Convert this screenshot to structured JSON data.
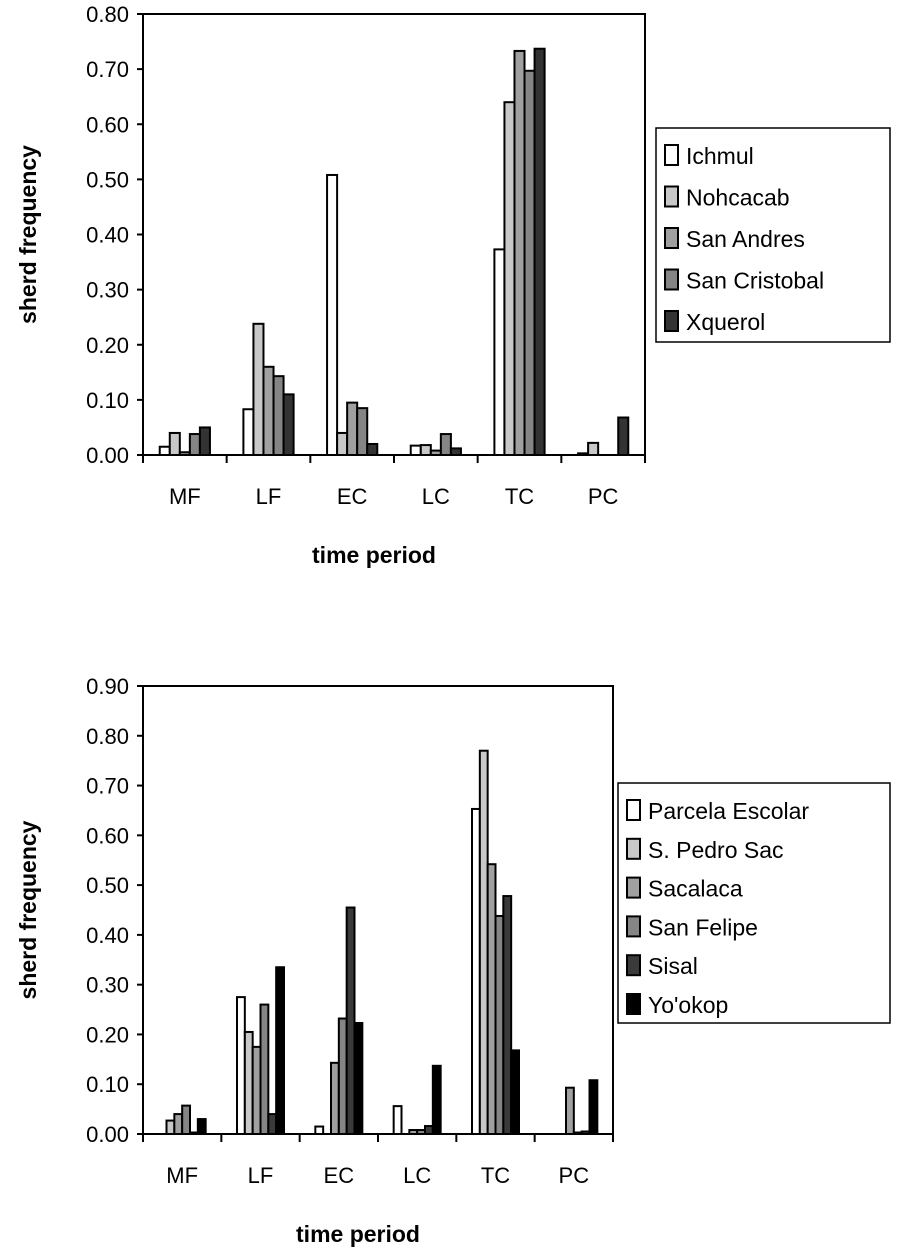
{
  "chart_data": [
    {
      "type": "bar",
      "xlabel": "time period",
      "ylabel": "sherd frequency",
      "ylim": [
        0,
        0.8
      ],
      "yticks": [
        "0.00",
        "0.10",
        "0.20",
        "0.30",
        "0.40",
        "0.50",
        "0.60",
        "0.70",
        "0.80"
      ],
      "categories": [
        "MF",
        "LF",
        "EC",
        "LC",
        "TC",
        "PC"
      ],
      "legend_position": "right",
      "grid": false,
      "series": [
        {
          "name": "Ichmul",
          "color": "#ffffff",
          "values": [
            0.015,
            0.083,
            0.508,
            0.017,
            0.373,
            0.003
          ]
        },
        {
          "name": "Nohcacab",
          "color": "#c8c8c8",
          "values": [
            0.04,
            0.238,
            0.04,
            0.018,
            0.64,
            0.022
          ]
        },
        {
          "name": "San Andres",
          "color": "#a0a0a0",
          "values": [
            0.005,
            0.16,
            0.095,
            0.008,
            0.733,
            0.0
          ]
        },
        {
          "name": "San Cristobal",
          "color": "#858585",
          "values": [
            0.038,
            0.143,
            0.085,
            0.038,
            0.697,
            0.0
          ]
        },
        {
          "name": "Xquerol",
          "color": "#333333",
          "values": [
            0.05,
            0.11,
            0.02,
            0.012,
            0.737,
            0.068
          ]
        }
      ]
    },
    {
      "type": "bar",
      "xlabel": "time period",
      "ylabel": "sherd frequency",
      "ylim": [
        0,
        0.9
      ],
      "yticks": [
        "0.00",
        "0.10",
        "0.20",
        "0.30",
        "0.40",
        "0.50",
        "0.60",
        "0.70",
        "0.80",
        "0.90"
      ],
      "categories": [
        "MF",
        "LF",
        "EC",
        "LC",
        "TC",
        "PC"
      ],
      "legend_position": "right",
      "grid": false,
      "series": [
        {
          "name": "Parcela Escolar",
          "color": "#ffffff",
          "values": [
            0.0,
            0.275,
            0.015,
            0.056,
            0.653,
            0.0
          ]
        },
        {
          "name": "S. Pedro Sac",
          "color": "#c8c8c8",
          "values": [
            0.027,
            0.205,
            0.0,
            0.0,
            0.77,
            0.0
          ]
        },
        {
          "name": "Sacalaca",
          "color": "#a0a0a0",
          "values": [
            0.04,
            0.175,
            0.143,
            0.008,
            0.542,
            0.093
          ]
        },
        {
          "name": "San Felipe",
          "color": "#858585",
          "values": [
            0.057,
            0.26,
            0.232,
            0.008,
            0.438,
            0.003
          ]
        },
        {
          "name": "Sisal",
          "color": "#3a3a3a",
          "values": [
            0.003,
            0.04,
            0.455,
            0.016,
            0.478,
            0.005
          ]
        },
        {
          "name": "Yo'okop",
          "color": "#000000",
          "values": [
            0.03,
            0.335,
            0.223,
            0.137,
            0.168,
            0.108
          ]
        }
      ]
    }
  ]
}
